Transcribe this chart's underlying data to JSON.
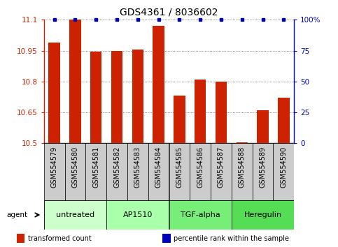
{
  "title": "GDS4361 / 8036602",
  "samples": [
    "GSM554579",
    "GSM554580",
    "GSM554581",
    "GSM554582",
    "GSM554583",
    "GSM554584",
    "GSM554585",
    "GSM554586",
    "GSM554587",
    "GSM554588",
    "GSM554589",
    "GSM554590"
  ],
  "bar_values": [
    10.99,
    11.1,
    10.945,
    10.95,
    10.955,
    11.07,
    10.73,
    10.81,
    10.8,
    10.505,
    10.66,
    10.72
  ],
  "bar_bottom": 10.5,
  "ylim_left": [
    10.5,
    11.1
  ],
  "ylim_right": [
    0,
    100
  ],
  "yticks_left": [
    10.5,
    10.65,
    10.8,
    10.95,
    11.1
  ],
  "ytick_labels_left": [
    "10.5",
    "10.65",
    "10.8",
    "10.95",
    "11.1"
  ],
  "yticks_right": [
    0,
    25,
    50,
    75,
    100
  ],
  "ytick_labels_right": [
    "0",
    "25",
    "50",
    "75",
    "100%"
  ],
  "bar_color": "#cc2200",
  "dot_color": "#0000bb",
  "grid_color": "#555555",
  "sample_box_color": "#cccccc",
  "groups": [
    {
      "label": "untreated",
      "start": 0,
      "end": 3,
      "color": "#ccffcc"
    },
    {
      "label": "AP1510",
      "start": 3,
      "end": 6,
      "color": "#aaffaa"
    },
    {
      "label": "TGF-alpha",
      "start": 6,
      "end": 9,
      "color": "#77ee77"
    },
    {
      "label": "Heregulin",
      "start": 9,
      "end": 12,
      "color": "#55dd55"
    }
  ],
  "agent_label": "agent",
  "legend_items": [
    {
      "color": "#cc2200",
      "label": "transformed count"
    },
    {
      "color": "#0000bb",
      "label": "percentile rank within the sample"
    }
  ],
  "left_tick_color": "#cc2200",
  "right_tick_color": "#0000bb",
  "background_color": "#ffffff",
  "figsize": [
    4.83,
    3.54
  ],
  "dpi": 100,
  "title_fontsize": 10,
  "tick_fontsize": 7.5,
  "label_fontsize": 7,
  "group_fontsize": 8
}
